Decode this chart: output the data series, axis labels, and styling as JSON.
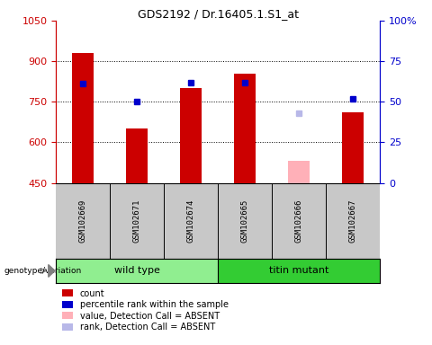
{
  "title": "GDS2192 / Dr.16405.1.S1_at",
  "samples": [
    "GSM102669",
    "GSM102671",
    "GSM102674",
    "GSM102665",
    "GSM102666",
    "GSM102667"
  ],
  "red_bars": [
    930,
    650,
    800,
    855,
    null,
    710
  ],
  "blue_dots": [
    61,
    50,
    62,
    62,
    null,
    52
  ],
  "pink_bar": [
    null,
    null,
    null,
    null,
    530,
    null
  ],
  "lavender_dot": [
    null,
    null,
    null,
    null,
    43,
    null
  ],
  "ylim_left": [
    450,
    1050
  ],
  "ylim_right": [
    0,
    100
  ],
  "left_ticks": [
    450,
    600,
    750,
    900,
    1050
  ],
  "right_ticks": [
    0,
    25,
    50,
    75,
    100
  ],
  "right_tick_labels": [
    "0",
    "25",
    "50",
    "75",
    "100%"
  ],
  "bar_width": 0.4,
  "red_color": "#CC0000",
  "blue_color": "#0000CC",
  "pink_color": "#FFB0B8",
  "lavender_color": "#B8B8E8",
  "axis_color_left": "#CC0000",
  "axis_color_right": "#0000CC",
  "tick_area_bg": "#C8C8C8",
  "group_bg_wt": "#90EE90",
  "group_bg_tm": "#33CC33",
  "wt_samples": [
    0,
    1,
    2
  ],
  "tm_samples": [
    3,
    4,
    5
  ]
}
